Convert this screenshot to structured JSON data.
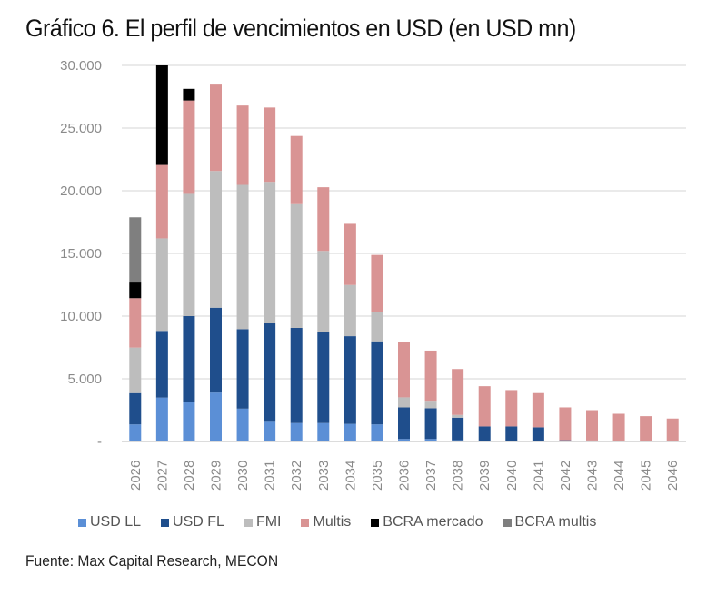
{
  "header": {
    "title": "Gráfico 6. El perfil de vencimientos en USD (en USD mn)"
  },
  "footer": {
    "source": "Fuente: Max Capital Research, MECON"
  },
  "chart_data": {
    "type": "bar",
    "stacked": true,
    "title": "Gráfico 6. El perfil de vencimientos en USD (en USD mn)",
    "xlabel": "",
    "ylabel": "",
    "ylim": [
      0,
      30000
    ],
    "yticks": [
      0,
      5000,
      10000,
      15000,
      20000,
      25000,
      30000
    ],
    "ytick_labels": [
      "-",
      "5.000",
      "10.000",
      "15.000",
      "20.000",
      "25.000",
      "30.000"
    ],
    "grid": true,
    "legend_position": "bottom",
    "categories": [
      "2026",
      "2027",
      "2028",
      "2029",
      "2030",
      "2031",
      "2032",
      "2033",
      "2034",
      "2035",
      "2036",
      "2037",
      "2038",
      "2039",
      "2040",
      "2041",
      "2042",
      "2043",
      "2044",
      "2045",
      "2046"
    ],
    "series": [
      {
        "name": "USD LL",
        "color": "#5b8fd6",
        "values": [
          1360,
          3500,
          3160,
          3900,
          2620,
          1570,
          1470,
          1470,
          1400,
          1360,
          200,
          200,
          100,
          50,
          50,
          50,
          0,
          0,
          0,
          0,
          0
        ]
      },
      {
        "name": "USD FL",
        "color": "#1f4e8c",
        "values": [
          2500,
          5320,
          6840,
          6770,
          6340,
          7850,
          7590,
          7280,
          7000,
          6630,
          2520,
          2450,
          1800,
          1150,
          1150,
          1080,
          100,
          80,
          60,
          50,
          0
        ]
      },
      {
        "name": "FMI",
        "color": "#bdbdbd",
        "values": [
          3630,
          7380,
          9750,
          10910,
          11510,
          11290,
          9870,
          6450,
          4080,
          2320,
          800,
          600,
          220,
          0,
          0,
          0,
          0,
          0,
          0,
          0,
          0
        ]
      },
      {
        "name": "Multis",
        "color": "#d99494",
        "values": [
          3940,
          5860,
          7450,
          6890,
          6330,
          5930,
          5440,
          5080,
          4880,
          4570,
          4450,
          4000,
          3660,
          3210,
          2900,
          2730,
          2620,
          2420,
          2150,
          1970,
          1830
        ]
      },
      {
        "name": "BCRA mercado",
        "color": "#000000",
        "values": [
          1320,
          7940,
          930,
          0,
          0,
          0,
          0,
          0,
          0,
          0,
          0,
          0,
          0,
          0,
          0,
          0,
          0,
          0,
          0,
          0,
          0
        ]
      },
      {
        "name": "BCRA multis",
        "color": "#7f7f7f",
        "values": [
          5130,
          0,
          0,
          0,
          0,
          0,
          0,
          0,
          0,
          0,
          0,
          0,
          0,
          0,
          0,
          0,
          0,
          0,
          0,
          0,
          0
        ]
      }
    ]
  }
}
